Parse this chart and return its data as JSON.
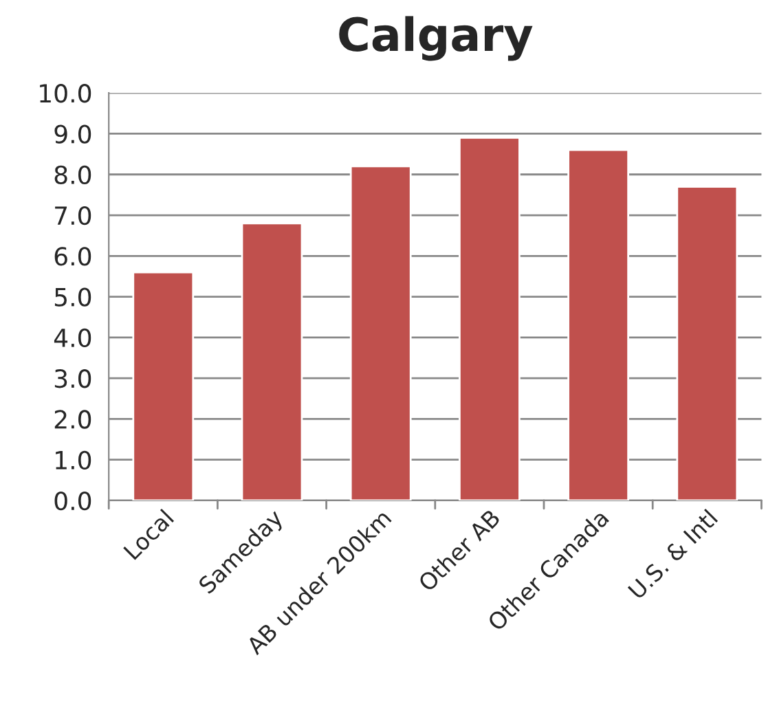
{
  "chart_data": {
    "type": "bar",
    "title": "Calgary",
    "categories": [
      "Local",
      "Sameday",
      "AB under 200km",
      "Other AB",
      "Other Canada",
      "U.S. & Intl"
    ],
    "values": [
      5.6,
      6.8,
      8.2,
      8.9,
      8.6,
      7.7
    ],
    "color": "#c0504d",
    "ylim": [
      0,
      10
    ],
    "yticks": [
      {
        "value": 0,
        "label": "0.0"
      },
      {
        "value": 1,
        "label": "1.0"
      },
      {
        "value": 2,
        "label": "2.0"
      },
      {
        "value": 3,
        "label": "3.0"
      },
      {
        "value": 4,
        "label": "4.0"
      },
      {
        "value": 5,
        "label": "5.0"
      },
      {
        "value": 6,
        "label": "6.0"
      },
      {
        "value": 7,
        "label": "7.0"
      },
      {
        "value": 8,
        "label": "8.0"
      },
      {
        "value": 9,
        "label": "9.0"
      },
      {
        "value": 10,
        "label": "10.0"
      }
    ],
    "grid": "y"
  }
}
